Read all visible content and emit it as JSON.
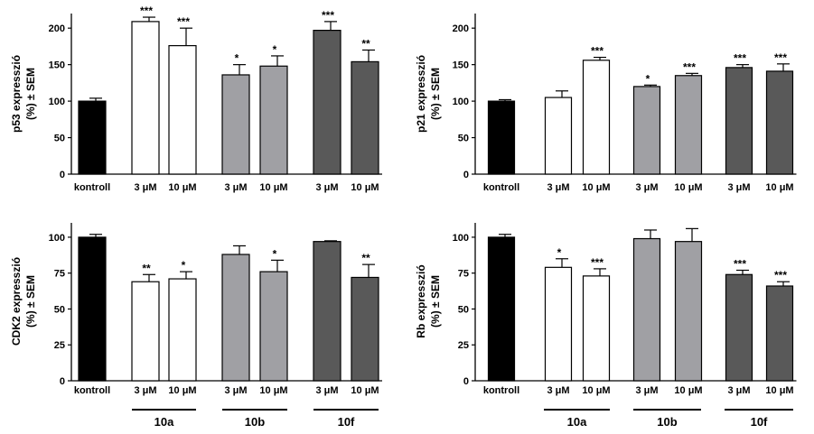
{
  "colors": {
    "kontroll": "#000000",
    "10a": "#ffffff",
    "10b": "#a0a0a4",
    "10f": "#595959"
  },
  "groups": [
    "10a",
    "10b",
    "10f"
  ],
  "chart_data": [
    {
      "type": "bar",
      "ylabel": [
        "p53 expresszió",
        "(%) ± SEM"
      ],
      "ylim": [
        0,
        220
      ],
      "yticks": [
        0,
        50,
        100,
        150,
        200
      ],
      "categories": [
        "kontroll",
        "3 μM",
        "10 μM",
        "3 μM",
        "10 μM",
        "3 μM",
        "10 μM"
      ],
      "series": [
        "kontroll",
        "10a",
        "10a",
        "10b",
        "10b",
        "10f",
        "10f"
      ],
      "values": [
        100,
        209,
        176,
        136,
        148,
        197,
        154
      ],
      "sem": [
        4,
        6,
        24,
        14,
        14,
        12,
        16
      ],
      "significance": [
        "",
        "***",
        "***",
        "*",
        "*",
        "***",
        "**"
      ]
    },
    {
      "type": "bar",
      "ylabel": [
        "p21 expresszió",
        "(%) ± SEM"
      ],
      "ylim": [
        0,
        220
      ],
      "yticks": [
        0,
        50,
        100,
        150,
        200
      ],
      "categories": [
        "kontroll",
        "3 μM",
        "10 μM",
        "3 μM",
        "10 μM",
        "3 μM",
        "10 μM"
      ],
      "series": [
        "kontroll",
        "10a",
        "10a",
        "10b",
        "10b",
        "10f",
        "10f"
      ],
      "values": [
        100,
        105,
        156,
        120,
        135,
        146,
        141
      ],
      "sem": [
        2,
        9,
        4,
        2,
        3,
        4,
        10
      ],
      "significance": [
        "",
        "",
        "***",
        "*",
        "***",
        "***",
        "***"
      ]
    },
    {
      "type": "bar",
      "ylabel": [
        "CDK2 expresszió",
        "(%) ± SEM"
      ],
      "ylim": [
        0,
        110
      ],
      "yticks": [
        0,
        25,
        50,
        75,
        100
      ],
      "categories": [
        "kontroll",
        "3 μM",
        "10 μM",
        "3 μM",
        "10 μM",
        "3 μM",
        "10 μM"
      ],
      "series": [
        "kontroll",
        "10a",
        "10a",
        "10b",
        "10b",
        "10f",
        "10f"
      ],
      "values": [
        100,
        69,
        71,
        88,
        76,
        97,
        72
      ],
      "sem": [
        2,
        5,
        5,
        6,
        8,
        0.5,
        9
      ],
      "significance": [
        "",
        "**",
        "*",
        "",
        "*",
        "",
        "**"
      ]
    },
    {
      "type": "bar",
      "ylabel": [
        "Rb expresszió",
        "(%) ± SEM"
      ],
      "ylim": [
        0,
        110
      ],
      "yticks": [
        0,
        25,
        50,
        75,
        100
      ],
      "categories": [
        "kontroll",
        "3 μM",
        "10 μM",
        "3 μM",
        "10 μM",
        "3 μM",
        "10 μM"
      ],
      "series": [
        "kontroll",
        "10a",
        "10a",
        "10b",
        "10b",
        "10f",
        "10f"
      ],
      "values": [
        100,
        79,
        73,
        99,
        97,
        74,
        66
      ],
      "sem": [
        2,
        6,
        5,
        6,
        9,
        3,
        3
      ],
      "significance": [
        "",
        "*",
        "***",
        "",
        "",
        "***",
        "***"
      ]
    }
  ]
}
